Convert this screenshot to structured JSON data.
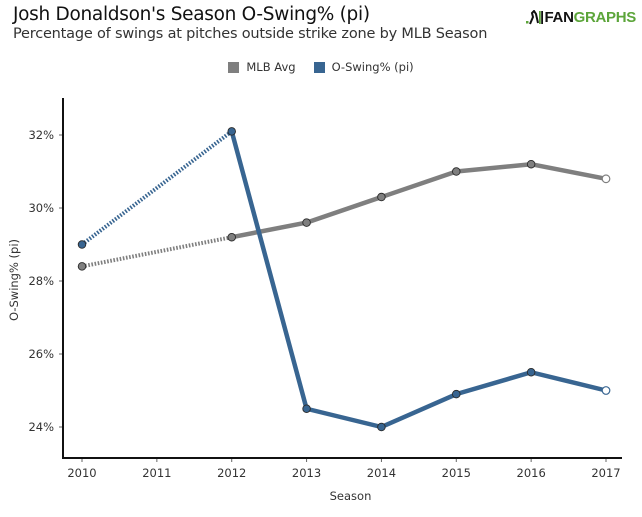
{
  "header": {
    "title": "Josh Donaldson's Season O-Swing% (pi)",
    "subtitle": "Percentage of swings at pitches outside strike zone by MLB Season",
    "logo_left": "FAN",
    "logo_right": "GRAPHS"
  },
  "colors": {
    "mlb_avg": "#7f7f7f",
    "player": "#386591",
    "axis": "#111111",
    "logo_green": "#5ca53a"
  },
  "chart_data": {
    "type": "line",
    "title": "Josh Donaldson's Season O-Swing% (pi)",
    "subtitle": "Percentage of swings at pitches outside strike zone by MLB Season",
    "xlabel": "Season",
    "ylabel": "O-Swing% (pi)",
    "x": [
      2010,
      2011,
      2012,
      2013,
      2014,
      2015,
      2016,
      2017
    ],
    "x_tick_labels": [
      "2010",
      "2011",
      "2012",
      "2013",
      "2014",
      "2015",
      "2016",
      "2017"
    ],
    "y_ticks": [
      24,
      26,
      28,
      30,
      32
    ],
    "y_tick_labels": [
      "24%",
      "26%",
      "28%",
      "30%",
      "32%"
    ],
    "ylim": [
      23.2,
      32.9
    ],
    "xlim": [
      2009.9,
      2017.08
    ],
    "grid": false,
    "legend_position": "top-center",
    "series": [
      {
        "name": "MLB Avg",
        "color": "#7f7f7f",
        "points": [
          {
            "x": 2010,
            "y": 28.4
          },
          {
            "x": 2012,
            "y": 29.2
          },
          {
            "x": 2013,
            "y": 29.6
          },
          {
            "x": 2014,
            "y": 30.3
          },
          {
            "x": 2015,
            "y": 31.0
          },
          {
            "x": 2016,
            "y": 31.2
          },
          {
            "x": 2017,
            "y": 30.8
          }
        ],
        "dotted_segments_before": 2012,
        "last_point_hollow": true
      },
      {
        "name": "O-Swing% (pi)",
        "color": "#386591",
        "points": [
          {
            "x": 2010,
            "y": 29.0
          },
          {
            "x": 2012,
            "y": 32.1
          },
          {
            "x": 2013,
            "y": 24.5
          },
          {
            "x": 2014,
            "y": 24.0
          },
          {
            "x": 2015,
            "y": 24.9
          },
          {
            "x": 2016,
            "y": 25.5
          },
          {
            "x": 2017,
            "y": 25.0
          }
        ],
        "dotted_segments_before": 2012,
        "last_point_hollow": true
      }
    ]
  }
}
